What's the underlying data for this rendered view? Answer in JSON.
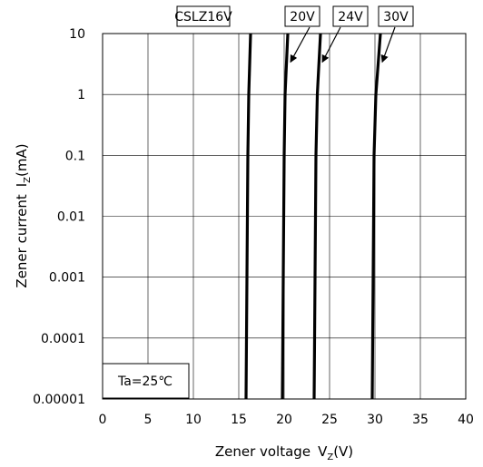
{
  "chart_data": {
    "type": "line",
    "xlabel": "Zener voltage",
    "xlabel_symbol": "V",
    "xlabel_sub": "Z",
    "xlabel_unit": "(V)",
    "ylabel": "Zener current",
    "ylabel_symbol": "I",
    "ylabel_sub": "Z",
    "ylabel_unit": "(mA)",
    "xlim": [
      0,
      40
    ],
    "ylim": [
      1e-05,
      10
    ],
    "yscale": "log",
    "grid": true,
    "x_ticks": [
      0,
      5,
      10,
      15,
      20,
      25,
      30,
      35,
      40
    ],
    "x_tick_labels": [
      "0",
      "5",
      "10",
      "15",
      "20",
      "25",
      "30",
      "35",
      "40"
    ],
    "y_ticks": [
      1e-05,
      0.0001,
      0.001,
      0.01,
      0.1,
      1,
      10
    ],
    "y_tick_labels": [
      "0.00001",
      "0.0001",
      "0.001",
      "0.01",
      "0.1",
      "1",
      "10"
    ],
    "annotation": "Ta=25℃",
    "series": [
      {
        "name": "CSLZ16V",
        "color": "#000000",
        "points": [
          [
            15.8,
            1e-05
          ],
          [
            15.85,
            0.0001
          ],
          [
            15.9,
            0.001
          ],
          [
            15.95,
            0.01
          ],
          [
            16.0,
            0.1
          ],
          [
            16.1,
            1
          ],
          [
            16.3,
            10
          ]
        ]
      },
      {
        "name": "20V",
        "color": "#000000",
        "points": [
          [
            19.8,
            1e-05
          ],
          [
            19.85,
            0.0001
          ],
          [
            19.9,
            0.001
          ],
          [
            19.95,
            0.01
          ],
          [
            20.0,
            0.1
          ],
          [
            20.1,
            1
          ],
          [
            20.4,
            10
          ]
        ]
      },
      {
        "name": "24V",
        "color": "#000000",
        "points": [
          [
            23.3,
            1e-05
          ],
          [
            23.35,
            0.0001
          ],
          [
            23.4,
            0.001
          ],
          [
            23.45,
            0.01
          ],
          [
            23.5,
            0.1
          ],
          [
            23.65,
            1
          ],
          [
            24.0,
            10
          ]
        ]
      },
      {
        "name": "30V",
        "color": "#000000",
        "points": [
          [
            29.7,
            1e-05
          ],
          [
            29.75,
            0.0001
          ],
          [
            29.8,
            0.001
          ],
          [
            29.85,
            0.01
          ],
          [
            29.9,
            0.1
          ],
          [
            30.1,
            1
          ],
          [
            30.6,
            10
          ]
        ]
      }
    ]
  }
}
